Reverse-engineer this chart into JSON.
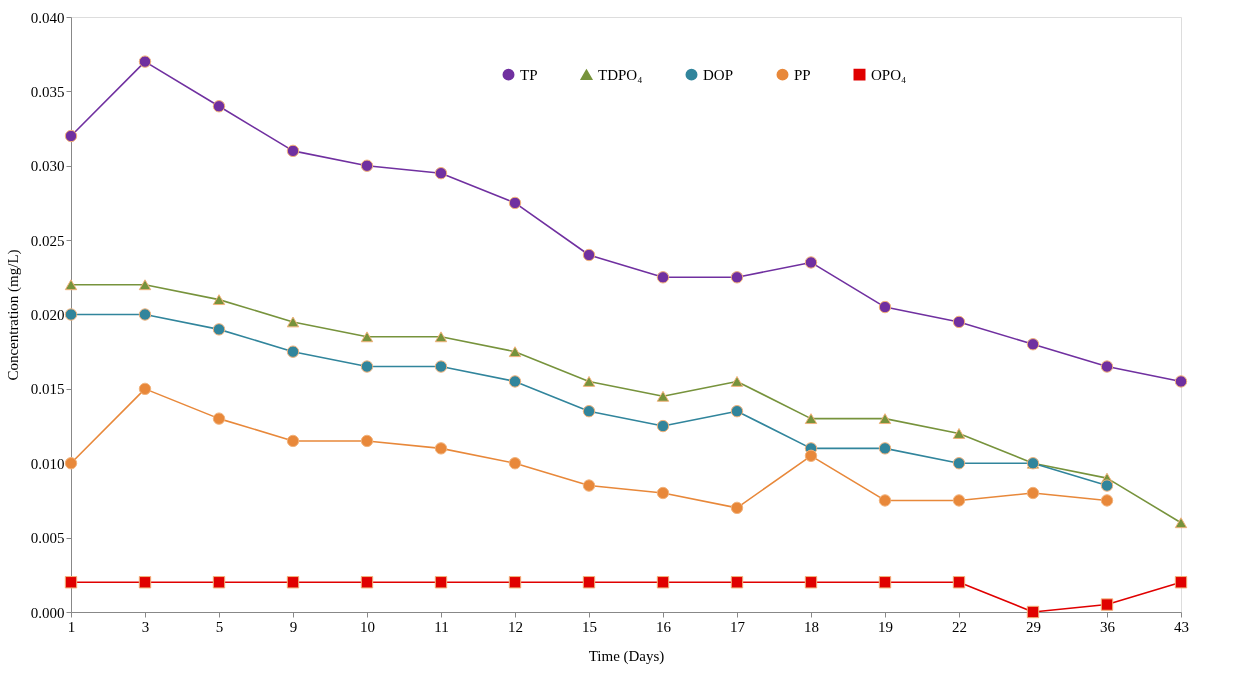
{
  "chart_data": {
    "type": "line",
    "xlabel": "Time (Days)",
    "ylabel": "Concentration (mg/L)",
    "categories": [
      "1",
      "3",
      "5",
      "9",
      "10",
      "11",
      "12",
      "15",
      "16",
      "17",
      "18",
      "19",
      "22",
      "29",
      "36",
      "43"
    ],
    "ylim": [
      0,
      0.04
    ],
    "yticks": [
      {
        "value": 0,
        "label": "0.000"
      },
      {
        "value": 0.005,
        "label": "0.005"
      },
      {
        "value": 0.01,
        "label": "0.010"
      },
      {
        "value": 0.015,
        "label": "0.015"
      },
      {
        "value": 0.02,
        "label": "0.020"
      },
      {
        "value": 0.025,
        "label": "0.025"
      },
      {
        "value": 0.03,
        "label": "0.030"
      },
      {
        "value": 0.035,
        "label": "0.035"
      },
      {
        "value": 0.04,
        "label": "0.040"
      }
    ],
    "grid": false,
    "legend": "top",
    "line_style": "solid",
    "series": [
      {
        "name": "TP",
        "color": "#7030a0",
        "marker": "circle",
        "values": [
          0.032,
          0.037,
          0.034,
          0.031,
          0.03,
          0.0295,
          0.0275,
          0.024,
          0.0225,
          0.0225,
          0.0235,
          0.0205,
          0.0195,
          0.018,
          0.0165,
          0.0155
        ]
      },
      {
        "name": "TDPO₄",
        "color": "#77933c",
        "marker": "triangle",
        "values": [
          0.022,
          0.022,
          0.021,
          0.0195,
          0.0185,
          0.0185,
          0.0175,
          0.0155,
          0.0145,
          0.0155,
          0.013,
          0.013,
          0.012,
          0.01,
          0.009,
          0.006
        ]
      },
      {
        "name": "DOP",
        "color": "#31859c",
        "marker": "circle",
        "values": [
          0.02,
          0.02,
          0.019,
          0.0175,
          0.0165,
          0.0165,
          0.0155,
          0.0135,
          0.0125,
          0.0135,
          0.011,
          0.011,
          0.01,
          0.01,
          0.0085,
          null
        ]
      },
      {
        "name": "PP",
        "color": "#e8883a",
        "marker": "circle",
        "values": [
          0.01,
          0.015,
          0.013,
          0.0115,
          0.0115,
          0.011,
          0.01,
          0.0085,
          0.008,
          0.007,
          0.0105,
          0.0075,
          0.0075,
          0.008,
          0.0075,
          null
        ]
      },
      {
        "name": "OPO₄",
        "color": "#e00000",
        "marker": "square",
        "values": [
          0.002,
          0.002,
          0.002,
          0.002,
          0.002,
          0.002,
          0.002,
          0.002,
          0.002,
          0.002,
          0.002,
          0.002,
          0.002,
          0,
          0.0005,
          0.002
        ]
      }
    ]
  }
}
